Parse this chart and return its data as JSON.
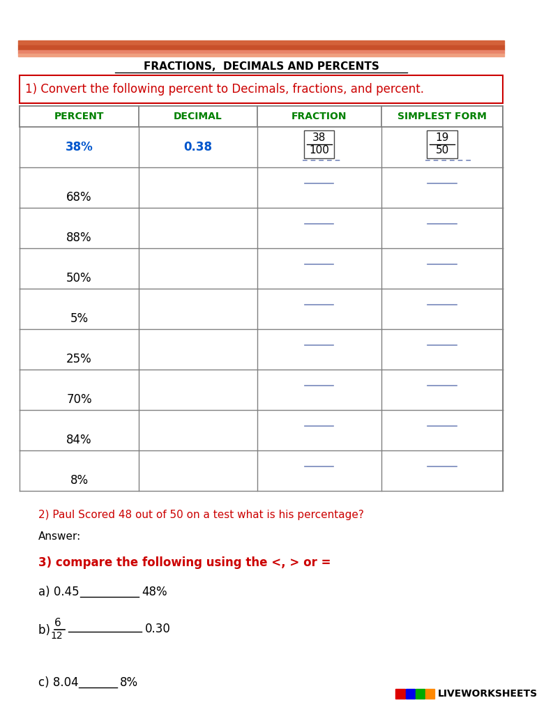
{
  "title": "FRACTIONS,  DECIMALS AND PERCENTS",
  "q1_text": "1) Convert the following percent to Decimals, fractions, and percent.",
  "col_headers": [
    "PERCENT",
    "DECIMAL",
    "FRACTION",
    "SIMPLEST FORM"
  ],
  "table_rows": [
    {
      "percent": "38%",
      "decimal": "0.38",
      "fraction_num": "38",
      "fraction_den": "100",
      "simplest_num": "19",
      "simplest_den": "50",
      "filled": true
    },
    {
      "percent": "68%",
      "filled": false
    },
    {
      "percent": "88%",
      "filled": false
    },
    {
      "percent": "50%",
      "filled": false
    },
    {
      "percent": "5%",
      "filled": false
    },
    {
      "percent": "25%",
      "filled": false
    },
    {
      "percent": "70%",
      "filled": false
    },
    {
      "percent": "84%",
      "filled": false
    },
    {
      "percent": "8%",
      "filled": false
    }
  ],
  "q2_text": "2) Paul Scored 48 out of 50 on a test what is his percentage?",
  "answer_label": "Answer:",
  "q3_text": "3) compare the following using the <, > or =",
  "compare_b_num": "6",
  "compare_b_den": "12",
  "header_color": "#008000",
  "blue_color": "#0055CC",
  "question_color": "#CC0000",
  "black": "#000000",
  "bg_color": "#FFFFFF",
  "border_color": "#808080",
  "answer_line_color": "#7788BB",
  "stripe_colors": [
    "#D4623A",
    "#C8502A",
    "#E8846A",
    "#EFA080"
  ],
  "lw_colors": [
    "#DD0000",
    "#0000EE",
    "#00AA00",
    "#FF8800"
  ]
}
